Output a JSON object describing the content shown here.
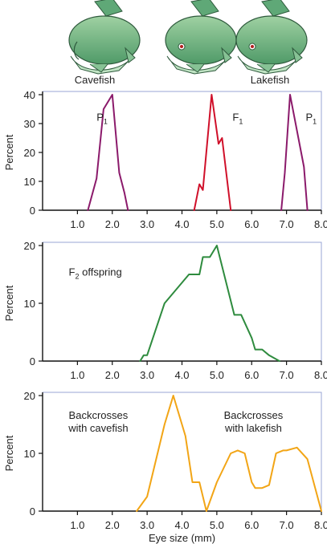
{
  "labels": {
    "cavefish": "Cavefish",
    "lakefish": "Lakefish",
    "ylabel": "Percent",
    "xlabel": "Eye size (mm)"
  },
  "chart_data": [
    {
      "type": "line",
      "ylabel": "Percent",
      "xlabel": "",
      "xlim": [
        0,
        8.0
      ],
      "ylim": [
        0,
        40
      ],
      "xticks": [
        "1.0",
        "2.0",
        "3.0",
        "4.0",
        "5.0",
        "6.0",
        "7.0",
        "8.0"
      ],
      "yticks": [
        "0",
        "10",
        "20",
        "30",
        "40"
      ],
      "series": [
        {
          "name": "P",
          "sub": "1",
          "color": "#8b1a6b",
          "label_at": [
            1.55,
            31
          ],
          "x": [
            1.3,
            1.55,
            1.75,
            2.0,
            2.2,
            2.35,
            2.45
          ],
          "y": [
            0,
            11,
            35,
            40,
            13,
            6,
            0
          ]
        },
        {
          "name": "F",
          "sub": "1",
          "color": "#d0102a",
          "label_at": [
            5.45,
            31
          ],
          "x": [
            4.35,
            4.5,
            4.6,
            4.85,
            5.05,
            5.15,
            5.4
          ],
          "y": [
            0,
            9,
            7,
            40,
            23,
            25,
            0
          ]
        },
        {
          "name": "P",
          "sub": "1",
          "color": "#8b1a6b",
          "label_at": [
            7.55,
            31
          ],
          "x": [
            6.85,
            6.95,
            7.1,
            7.5,
            7.6
          ],
          "y": [
            0,
            13,
            40,
            15,
            0
          ]
        }
      ]
    },
    {
      "type": "line",
      "ylabel": "Percent",
      "xlabel": "",
      "xlim": [
        0,
        8.0
      ],
      "ylim": [
        0,
        20
      ],
      "xticks": [
        "1.0",
        "2.0",
        "3.0",
        "4.0",
        "5.0",
        "6.0",
        "7.0",
        "8.0"
      ],
      "yticks": [
        "0",
        "10",
        "20"
      ],
      "annotation": {
        "main": "F",
        "sub": "2",
        "rest": " offspring",
        "at": [
          0.75,
          14.8
        ]
      },
      "series": [
        {
          "name": "F2 offspring",
          "color": "#2e8b3e",
          "x": [
            2.8,
            2.9,
            3.0,
            3.5,
            4.2,
            4.5,
            4.6,
            4.8,
            5.0,
            5.5,
            5.7,
            6.0,
            6.1,
            6.3,
            6.5,
            6.8
          ],
          "y": [
            0,
            1,
            1,
            10,
            15,
            15,
            18,
            18,
            20,
            8,
            8,
            4,
            2,
            2,
            1,
            0
          ]
        }
      ]
    },
    {
      "type": "line",
      "ylabel": "Percent",
      "xlabel": "Eye size (mm)",
      "xlim": [
        0,
        8.0
      ],
      "ylim": [
        0,
        20
      ],
      "xticks": [
        "1.0",
        "2.0",
        "3.0",
        "4.0",
        "5.0",
        "6.0",
        "7.0",
        "8.0"
      ],
      "yticks": [
        "0",
        "10",
        "20"
      ],
      "annotations": [
        {
          "lines": [
            "Backcrosses",
            "with cavefish"
          ],
          "at": [
            1.6,
            16
          ]
        },
        {
          "lines": [
            "Backcrosses",
            "with lakefish"
          ],
          "at": [
            6.05,
            16
          ]
        }
      ],
      "series": [
        {
          "name": "Backcrosses",
          "color": "#f2a516",
          "x": [
            2.7,
            3.0,
            3.5,
            3.75,
            4.1,
            4.3,
            4.5,
            4.7,
            5.0,
            5.4,
            5.6,
            5.8,
            6.0,
            6.1,
            6.3,
            6.5,
            6.7,
            6.9,
            7.0,
            7.3,
            7.6,
            8.0
          ],
          "y": [
            0,
            2.5,
            15,
            20,
            13,
            5,
            5,
            0,
            5,
            10,
            10.5,
            10,
            5,
            4,
            4,
            4.5,
            10,
            10.5,
            10.5,
            11,
            9,
            0
          ]
        }
      ]
    }
  ]
}
